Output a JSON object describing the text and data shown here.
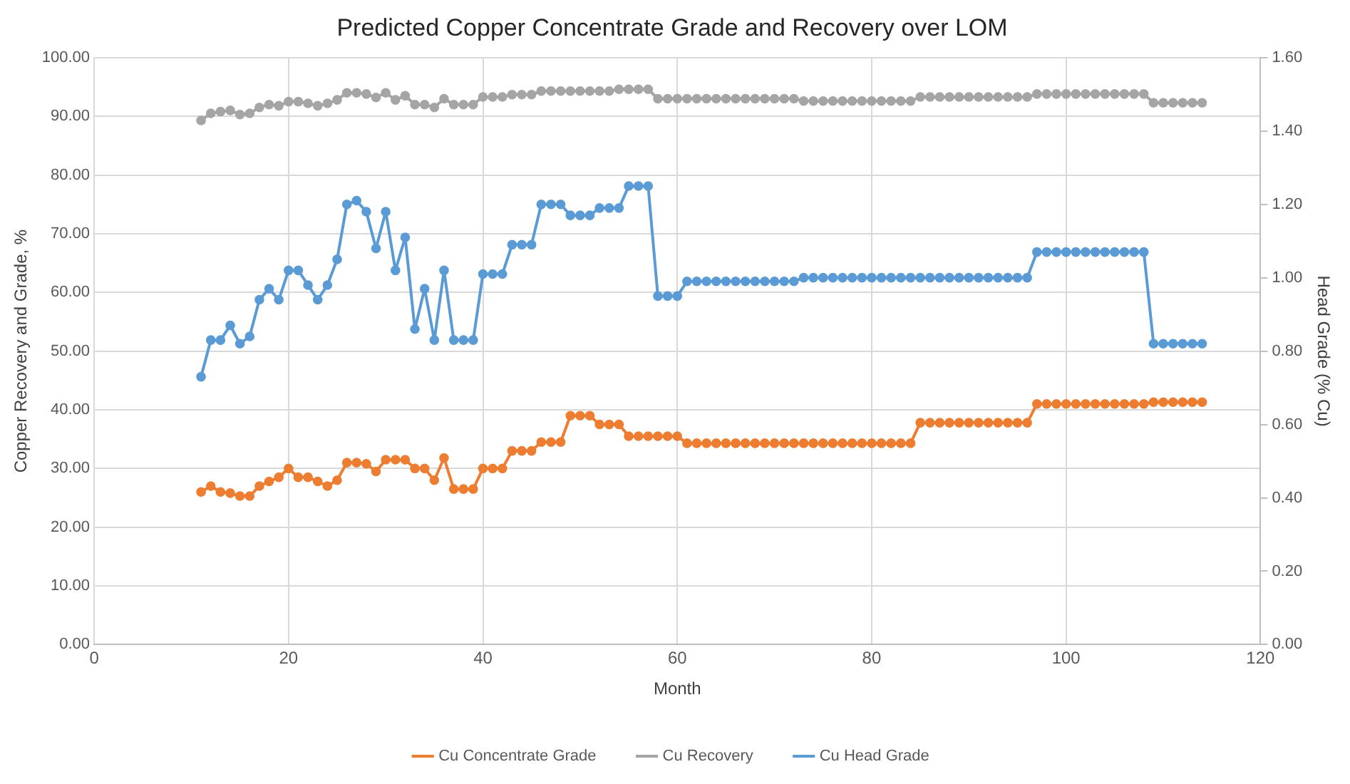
{
  "chart_data": {
    "type": "line",
    "title": "Predicted Copper Concentrate Grade and Recovery over LOM",
    "xlabel": "Month",
    "ylabel": "Copper Recovery and Grade, %",
    "y2label": "Head Grade (% Cu)",
    "x": [
      11,
      12,
      13,
      14,
      15,
      16,
      17,
      18,
      19,
      20,
      21,
      22,
      23,
      24,
      25,
      26,
      27,
      28,
      29,
      30,
      31,
      32,
      33,
      34,
      35,
      36,
      37,
      38,
      39,
      40,
      41,
      42,
      43,
      44,
      45,
      46,
      47,
      48,
      49,
      50,
      51,
      52,
      53,
      54,
      55,
      56,
      57,
      58,
      59,
      60,
      61,
      62,
      63,
      64,
      65,
      66,
      67,
      68,
      69,
      70,
      71,
      72,
      73,
      74,
      75,
      76,
      77,
      78,
      79,
      80,
      81,
      82,
      83,
      84,
      85,
      86,
      87,
      88,
      89,
      90,
      91,
      92,
      93,
      94,
      95,
      96,
      97,
      98,
      99,
      100,
      101,
      102,
      103,
      104,
      105,
      106,
      107,
      108,
      109,
      110,
      111,
      112,
      113,
      114
    ],
    "series": [
      {
        "name": "Cu Concentrate Grade",
        "color": "#ed7d31",
        "values": [
          26.0,
          27.0,
          26.0,
          25.8,
          25.3,
          25.3,
          27.0,
          27.8,
          28.5,
          30.0,
          28.5,
          28.5,
          27.8,
          27.0,
          28.0,
          31.0,
          31.0,
          30.8,
          29.5,
          31.5,
          31.5,
          31.5,
          30.0,
          30.0,
          28.0,
          31.8,
          26.5,
          26.5,
          26.5,
          30.0,
          30.0,
          30.0,
          33.0,
          33.0,
          33.0,
          34.5,
          34.5,
          34.5,
          39.0,
          39.0,
          39.0,
          37.5,
          37.5,
          37.5,
          35.5,
          35.5,
          35.5,
          35.5,
          35.5,
          35.5,
          34.3,
          34.3,
          34.3,
          34.3,
          34.3,
          34.3,
          34.3,
          34.3,
          34.3,
          34.3,
          34.3,
          34.3,
          34.3,
          34.3,
          34.3,
          34.3,
          34.3,
          34.3,
          34.3,
          34.3,
          34.3,
          34.3,
          34.3,
          34.3,
          37.8,
          37.8,
          37.8,
          37.8,
          37.8,
          37.8,
          37.8,
          37.8,
          37.8,
          37.8,
          37.8,
          37.8,
          41.0,
          41.0,
          41.0,
          41.0,
          41.0,
          41.0,
          41.0,
          41.0,
          41.0,
          41.0,
          41.0,
          41.0,
          41.3,
          41.3,
          41.3,
          41.3,
          41.3,
          41.3
        ]
      },
      {
        "name": "Cu Recovery",
        "color": "#a5a5a5",
        "values": [
          89.3,
          90.5,
          90.8,
          91.0,
          90.3,
          90.5,
          91.5,
          92.0,
          91.8,
          92.5,
          92.5,
          92.2,
          91.8,
          92.2,
          92.8,
          94.0,
          94.0,
          93.8,
          93.2,
          94.0,
          92.8,
          93.5,
          92.0,
          92.0,
          91.5,
          93.0,
          92.0,
          92.0,
          92.0,
          93.3,
          93.3,
          93.3,
          93.7,
          93.7,
          93.7,
          94.3,
          94.3,
          94.3,
          94.3,
          94.3,
          94.3,
          94.3,
          94.3,
          94.6,
          94.6,
          94.6,
          94.6,
          93.0,
          93.0,
          93.0,
          93.0,
          93.0,
          93.0,
          93.0,
          93.0,
          93.0,
          93.0,
          93.0,
          93.0,
          93.0,
          93.0,
          93.0,
          92.6,
          92.6,
          92.6,
          92.6,
          92.6,
          92.6,
          92.6,
          92.6,
          92.6,
          92.6,
          92.6,
          92.6,
          93.3,
          93.3,
          93.3,
          93.3,
          93.3,
          93.3,
          93.3,
          93.3,
          93.3,
          93.3,
          93.3,
          93.3,
          93.8,
          93.8,
          93.8,
          93.8,
          93.8,
          93.8,
          93.8,
          93.8,
          93.8,
          93.8,
          93.8,
          93.8,
          92.3,
          92.3,
          92.3,
          92.3,
          92.3,
          92.3
        ]
      },
      {
        "name": "Cu Head Grade",
        "color": "#5b9bd5",
        "axis": "y2",
        "values": [
          0.73,
          0.83,
          0.83,
          0.87,
          0.82,
          0.84,
          0.94,
          0.97,
          0.94,
          1.02,
          1.02,
          0.98,
          0.94,
          0.98,
          1.05,
          1.2,
          1.21,
          1.18,
          1.08,
          1.18,
          1.02,
          1.11,
          0.86,
          0.97,
          0.83,
          1.02,
          0.83,
          0.83,
          0.83,
          1.01,
          1.01,
          1.01,
          1.09,
          1.09,
          1.09,
          1.2,
          1.2,
          1.2,
          1.17,
          1.17,
          1.17,
          1.19,
          1.19,
          1.19,
          1.25,
          1.25,
          1.25,
          0.95,
          0.95,
          0.95,
          0.99,
          0.99,
          0.99,
          0.99,
          0.99,
          0.99,
          0.99,
          0.99,
          0.99,
          0.99,
          0.99,
          0.99,
          1.0,
          1.0,
          1.0,
          1.0,
          1.0,
          1.0,
          1.0,
          1.0,
          1.0,
          1.0,
          1.0,
          1.0,
          1.0,
          1.0,
          1.0,
          1.0,
          1.0,
          1.0,
          1.0,
          1.0,
          1.0,
          1.0,
          1.0,
          1.0,
          1.07,
          1.07,
          1.07,
          1.07,
          1.07,
          1.07,
          1.07,
          1.07,
          1.07,
          1.07,
          1.07,
          1.07,
          0.82,
          0.82,
          0.82,
          0.82,
          0.82,
          0.82
        ]
      }
    ],
    "xlim": [
      0,
      120
    ],
    "xticks": [
      0,
      20,
      40,
      60,
      80,
      100,
      120
    ],
    "ylim": [
      0,
      100
    ],
    "yticks": [
      {
        "value": 0,
        "label": "0.00"
      },
      {
        "value": 10,
        "label": "10.00"
      },
      {
        "value": 20,
        "label": "20.00"
      },
      {
        "value": 30,
        "label": "30.00"
      },
      {
        "value": 40,
        "label": "40.00"
      },
      {
        "value": 50,
        "label": "50.00"
      },
      {
        "value": 60,
        "label": "60.00"
      },
      {
        "value": 70,
        "label": "70.00"
      },
      {
        "value": 80,
        "label": "80.00"
      },
      {
        "value": 90,
        "label": "90.00"
      },
      {
        "value": 100,
        "label": "100.00"
      }
    ],
    "y2lim": [
      0,
      1.6
    ],
    "y2ticks": [
      {
        "value": 0,
        "label": "0.00"
      },
      {
        "value": 0.2,
        "label": "0.20"
      },
      {
        "value": 0.4,
        "label": "0.40"
      },
      {
        "value": 0.6,
        "label": "0.60"
      },
      {
        "value": 0.8,
        "label": "0.80"
      },
      {
        "value": 1.0,
        "label": "1.00"
      },
      {
        "value": 1.2,
        "label": "1.20"
      },
      {
        "value": 1.4,
        "label": "1.40"
      },
      {
        "value": 1.6,
        "label": "1.60"
      }
    ],
    "grid": true,
    "legend": "bottom",
    "marker": "circle",
    "line_style": "solid"
  }
}
